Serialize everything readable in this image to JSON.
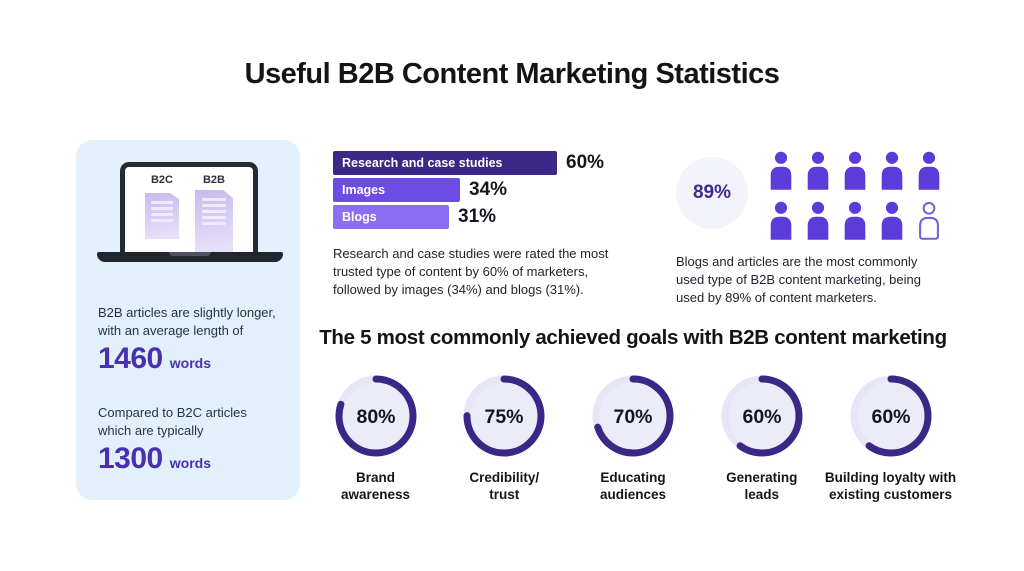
{
  "page": {
    "title": "Useful B2B Content Marketing Statistics"
  },
  "colors": {
    "card_bg": "#e1f0fa",
    "stat_number": "#4a2fae",
    "bar_dark": "#3b2786",
    "bar_mid": "#6c4ce4",
    "bar_light": "#8c6ef2",
    "people_fill": "#5b3cd9",
    "people_outline": "#7a5fe0",
    "badge_bg": "#f3f3fb",
    "badge_text": "#3b2a8f",
    "donut_ring": "#3b2786",
    "donut_track": "#e7e6f6",
    "donut_inner": "#ececf9",
    "heading_text": "#141414",
    "body_text": "#20252d"
  },
  "card": {
    "laptop": {
      "b2c_label": "B2C",
      "b2b_label": "B2B"
    },
    "stat1": {
      "text": "B2B articles are slightly longer, with an average length of",
      "value": "1460",
      "unit": "words"
    },
    "stat2": {
      "text": "Compared to B2C articles which are typically",
      "value": "1300",
      "unit": "words"
    }
  },
  "chart_data": [
    {
      "type": "bar",
      "orientation": "horizontal",
      "categories": [
        "Research and case studies",
        "Images",
        "Blogs"
      ],
      "values": [
        60,
        34,
        31
      ],
      "unit": "%",
      "value_labels": [
        "60%",
        "34%",
        "31%"
      ],
      "bar_colors": [
        "#3b2786",
        "#6c4ce4",
        "#8c6ef2"
      ],
      "xlim": [
        0,
        100
      ],
      "grid": false,
      "legend": false,
      "caption": "Research and case studies were rated the most trusted type of content by 60% of marketers, followed by images (34%) and blogs (31%)."
    },
    {
      "type": "pictogram",
      "value": 89,
      "unit": "%",
      "value_label": "89%",
      "total_icons": 10,
      "filled_icons": 9,
      "icon": "person-icon",
      "caption": "Blogs and articles are the most commonly used type of B2B content marketing, being used by 89% of content marketers."
    },
    {
      "type": "donut",
      "title": "The 5 most commonly achieved goals with B2B content marketing",
      "categories": [
        "Brand awareness",
        "Credibility/trust",
        "Educating audiences",
        "Generating leads",
        "Building loyalty with existing customers"
      ],
      "labels": [
        "Brand\nawareness",
        "Credibility/\ntrust",
        "Educating\naudiences",
        "Generating\nleads",
        "Building loyalty with\nexisting customers"
      ],
      "values": [
        80,
        75,
        70,
        60,
        60
      ],
      "unit": "%",
      "value_labels": [
        "80%",
        "75%",
        "70%",
        "60%",
        "60%"
      ]
    }
  ]
}
